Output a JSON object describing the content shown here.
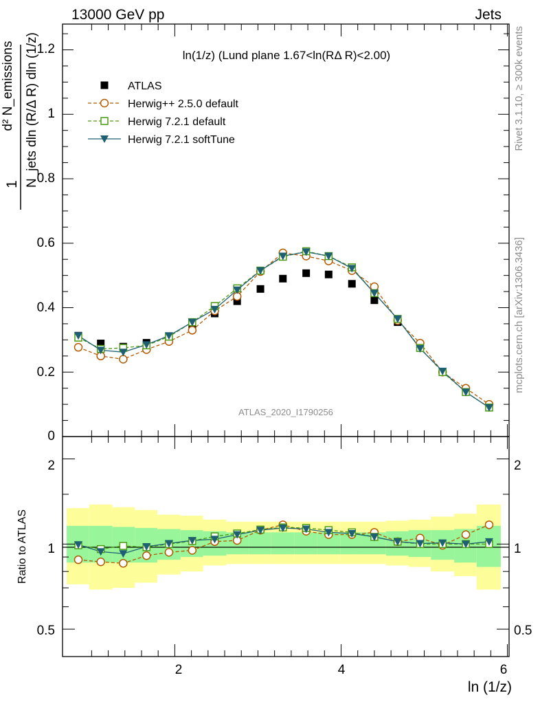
{
  "header": {
    "left": "13000 GeV pp",
    "right": "Jets"
  },
  "side_labels": {
    "rivet": "Rivet 3.1.10, ≥ 300k events",
    "mcplots": "mcplots.cern.ch [arXiv:1306.3436]"
  },
  "main_panel": {
    "title": "ln(1/z) (Lund plane 1.67<ln(RΔ R)<2.00)",
    "ylabel_numerator": "d² N_emissions",
    "ylabel_denominator": "N_jets dln (R/Δ R) dln (1/z)",
    "ylabel_one": "1",
    "watermark": "ATLAS_2020_I1790256",
    "ytick_labels": [
      "0",
      "0.2",
      "0.4",
      "0.6",
      "0.8",
      "1",
      "1.2"
    ]
  },
  "ratio_panel": {
    "ylabel": "Ratio to ATLAS",
    "ytick_labels_left": [
      "0.5",
      "1",
      "2"
    ],
    "ytick_labels_right": [
      "0.5",
      "1",
      "2"
    ]
  },
  "x_axis": {
    "label": "ln (1/z)",
    "tick_labels": [
      "2",
      "4",
      "6"
    ]
  },
  "colors": {
    "atlas": "#000000",
    "herwigpp": "#b35900",
    "herwig721": "#4a9a10",
    "softtune": "#1f5f73",
    "band_inner": "#99f599",
    "band_outer": "#fdfd99"
  },
  "chart_data": {
    "type": "scatter",
    "x": [
      0.84,
      1.11,
      1.38,
      1.66,
      1.93,
      2.21,
      2.48,
      2.75,
      3.03,
      3.3,
      3.58,
      3.85,
      4.13,
      4.4,
      4.68,
      4.95,
      5.22,
      5.5,
      5.78
    ],
    "x_edges": [
      0.7,
      0.97,
      1.25,
      1.52,
      1.79,
      2.07,
      2.34,
      2.62,
      2.89,
      3.16,
      3.44,
      3.71,
      3.99,
      4.26,
      4.54,
      4.81,
      5.08,
      5.36,
      5.63,
      5.92
    ],
    "xlim": [
      0.65,
      6.02
    ],
    "ylim": [
      0,
      1.28
    ],
    "ratio_ylim": [
      0.4,
      2.4
    ],
    "series": [
      {
        "name": "ATLAS",
        "marker": "filled-square",
        "values": [
          0.313,
          0.289,
          0.279,
          0.291,
          0.308,
          0.348,
          0.382,
          0.42,
          0.458,
          0.49,
          0.507,
          0.503,
          0.474,
          0.423,
          0.355,
          0.275,
          0.2,
          0.14,
          0.09
        ]
      },
      {
        "name": "Herwig++ 2.5.0 default",
        "marker": "open-circle",
        "values": [
          0.277,
          0.25,
          0.24,
          0.27,
          0.295,
          0.33,
          0.39,
          0.435,
          0.512,
          0.57,
          0.56,
          0.545,
          0.515,
          0.465,
          0.36,
          0.29,
          0.2,
          0.15,
          0.1
        ],
        "ratio": [
          0.88,
          0.865,
          0.855,
          0.91,
          0.935,
          0.95,
          1.02,
          1.03,
          1.12,
          1.17,
          1.11,
          1.08,
          1.08,
          1.1,
          1.02,
          1.05,
          0.99,
          1.08,
          1.17
        ]
      },
      {
        "name": "Herwig 7.2.1 default",
        "marker": "open-square",
        "values": [
          0.307,
          0.272,
          0.275,
          0.283,
          0.31,
          0.355,
          0.405,
          0.46,
          0.515,
          0.558,
          0.575,
          0.56,
          0.525,
          0.445,
          0.365,
          0.275,
          0.2,
          0.138,
          0.09
        ],
        "ratio": [
          0.99,
          0.96,
          0.985,
          0.975,
          1.0,
          1.025,
          1.065,
          1.09,
          1.125,
          1.145,
          1.14,
          1.12,
          1.1,
          1.06,
          1.02,
          1.0,
          1.0,
          1.0,
          1.0
        ]
      },
      {
        "name": "Herwig 7.2.1 softTune",
        "marker": "filled-triangle-down",
        "values": [
          0.313,
          0.268,
          0.262,
          0.285,
          0.313,
          0.355,
          0.395,
          0.455,
          0.515,
          0.56,
          0.573,
          0.56,
          0.522,
          0.445,
          0.365,
          0.273,
          0.203,
          0.138,
          0.09
        ],
        "ratio": [
          0.995,
          0.94,
          0.925,
          0.98,
          1.005,
          1.03,
          1.04,
          1.08,
          1.12,
          1.14,
          1.13,
          1.1,
          1.09,
          1.06,
          1.02,
          1.005,
          1.01,
          1.0,
          1.02
        ]
      }
    ],
    "ratio_bands": {
      "inner_low": [
        0.86,
        0.86,
        0.86,
        0.86,
        0.88,
        0.9,
        0.91,
        0.92,
        0.92,
        0.92,
        0.92,
        0.92,
        0.92,
        0.92,
        0.91,
        0.9,
        0.88,
        0.86,
        0.83
      ],
      "inner_high": [
        1.16,
        1.16,
        1.15,
        1.14,
        1.13,
        1.12,
        1.11,
        1.1,
        1.1,
        1.1,
        1.1,
        1.1,
        1.1,
        1.1,
        1.11,
        1.12,
        1.12,
        1.13,
        1.16
      ],
      "outer_low": [
        0.72,
        0.69,
        0.7,
        0.73,
        0.78,
        0.8,
        0.84,
        0.85,
        0.85,
        0.85,
        0.85,
        0.85,
        0.85,
        0.85,
        0.84,
        0.83,
        0.8,
        0.77,
        0.69
      ],
      "outer_high": [
        1.34,
        1.38,
        1.35,
        1.32,
        1.27,
        1.26,
        1.22,
        1.2,
        1.2,
        1.2,
        1.2,
        1.2,
        1.2,
        1.2,
        1.21,
        1.22,
        1.25,
        1.28,
        1.38
      ]
    }
  }
}
